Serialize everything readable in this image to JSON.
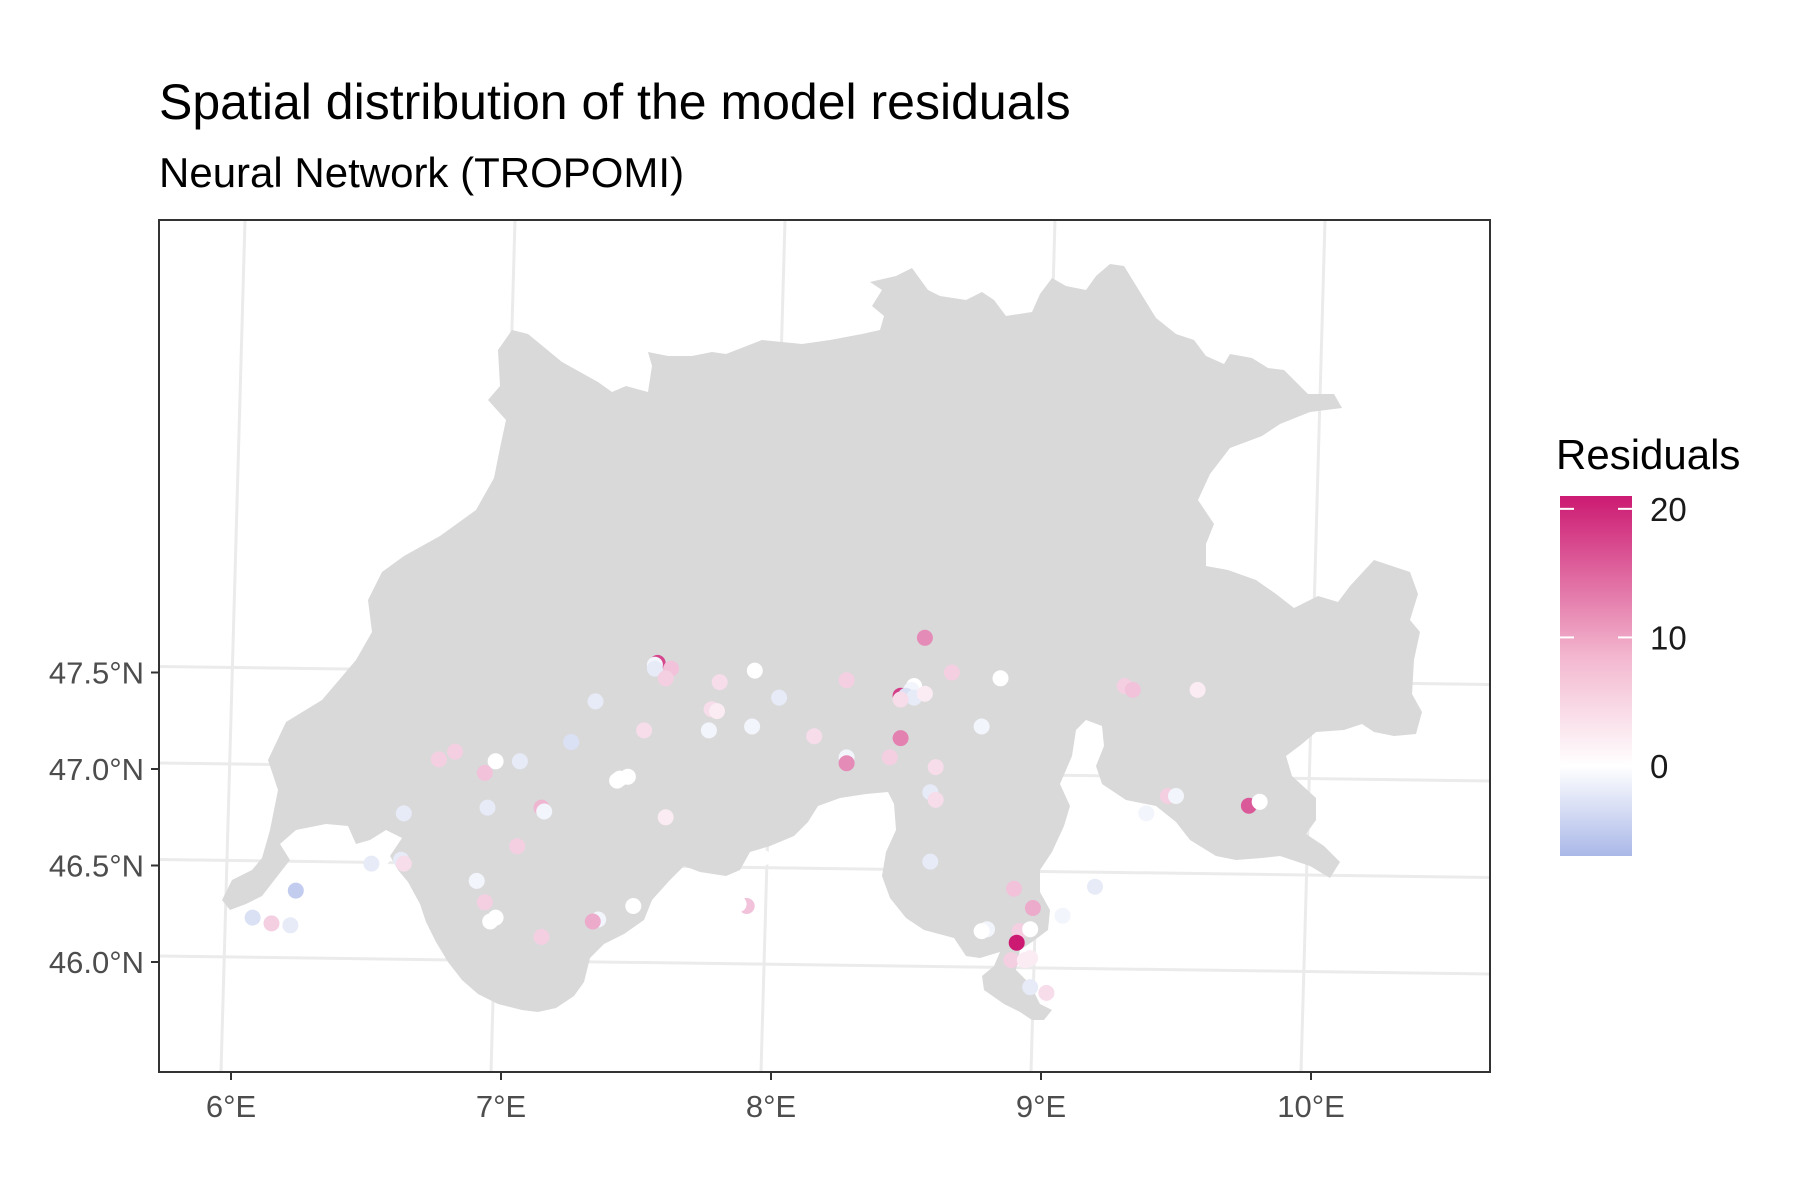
{
  "chart_data": {
    "type": "scatter",
    "title": "Spatial distribution of the model residuals",
    "subtitle": "Neural Network (TROPOMI)",
    "x_ticks": [
      {
        "value": 6,
        "label": "6°E"
      },
      {
        "value": 7,
        "label": "7°E"
      },
      {
        "value": 8,
        "label": "8°E"
      },
      {
        "value": 9,
        "label": "9°E"
      },
      {
        "value": 10,
        "label": "10°E"
      }
    ],
    "y_ticks": [
      {
        "value": 46.0,
        "label": "46.0°N"
      },
      {
        "value": 46.5,
        "label": "46.5°N"
      },
      {
        "value": 47.0,
        "label": "47.0°N"
      },
      {
        "value": 47.5,
        "label": "47.5°N"
      }
    ],
    "xlim": [
      5.74,
      10.66
    ],
    "ylim": [
      45.71,
      47.91
    ],
    "grid": true,
    "basemap": "Switzerland outline (grey)",
    "legend": {
      "title": "Residuals",
      "position": "right",
      "scale": {
        "min": -7,
        "mid": 0,
        "max": 21,
        "low_color": "#aab8e8",
        "mid_color": "#ffffff",
        "high_color": "#cc1a72"
      },
      "breaks": [
        {
          "value": 20,
          "label": "20"
        },
        {
          "value": 10,
          "label": "10"
        },
        {
          "value": 0,
          "label": "0"
        }
      ]
    },
    "colors": {
      "background": "#ffffff",
      "map_fill": "#d9d9d9",
      "grid": "#ebebeb",
      "panel_border": "#333333"
    },
    "points": [
      {
        "lon": 7.58,
        "lat": 47.55,
        "residual": 16
      },
      {
        "lon": 7.57,
        "lat": 47.54,
        "residual": -1
      },
      {
        "lon": 7.57,
        "lat": 47.52,
        "residual": -2
      },
      {
        "lon": 7.63,
        "lat": 47.52,
        "residual": 4
      },
      {
        "lon": 7.61,
        "lat": 47.47,
        "residual": 3
      },
      {
        "lon": 7.94,
        "lat": 47.51,
        "residual": 0
      },
      {
        "lon": 7.81,
        "lat": 47.45,
        "residual": 2
      },
      {
        "lon": 8.28,
        "lat": 47.46,
        "residual": 3
      },
      {
        "lon": 8.57,
        "lat": 47.68,
        "residual": 9
      },
      {
        "lon": 8.67,
        "lat": 47.5,
        "residual": 3
      },
      {
        "lon": 8.85,
        "lat": 47.47,
        "residual": 0
      },
      {
        "lon": 8.53,
        "lat": 47.43,
        "residual": 0
      },
      {
        "lon": 8.52,
        "lat": 47.41,
        "residual": -1
      },
      {
        "lon": 8.48,
        "lat": 47.38,
        "residual": 17
      },
      {
        "lon": 8.5,
        "lat": 47.38,
        "residual": -3
      },
      {
        "lon": 8.53,
        "lat": 47.37,
        "residual": -2
      },
      {
        "lon": 8.57,
        "lat": 47.39,
        "residual": 1
      },
      {
        "lon": 8.48,
        "lat": 47.36,
        "residual": 2
      },
      {
        "lon": 9.31,
        "lat": 47.43,
        "residual": 3
      },
      {
        "lon": 9.34,
        "lat": 47.41,
        "residual": 4
      },
      {
        "lon": 9.58,
        "lat": 47.41,
        "residual": 1
      },
      {
        "lon": 7.35,
        "lat": 47.35,
        "residual": -2
      },
      {
        "lon": 8.03,
        "lat": 47.37,
        "residual": -2
      },
      {
        "lon": 7.78,
        "lat": 47.31,
        "residual": 2
      },
      {
        "lon": 7.8,
        "lat": 47.3,
        "residual": 1
      },
      {
        "lon": 7.93,
        "lat": 47.22,
        "residual": -1
      },
      {
        "lon": 7.77,
        "lat": 47.2,
        "residual": -1
      },
      {
        "lon": 7.53,
        "lat": 47.2,
        "residual": 2
      },
      {
        "lon": 8.16,
        "lat": 47.17,
        "residual": 2
      },
      {
        "lon": 8.48,
        "lat": 47.16,
        "residual": 10
      },
      {
        "lon": 8.78,
        "lat": 47.22,
        "residual": -1
      },
      {
        "lon": 7.26,
        "lat": 47.14,
        "residual": -3
      },
      {
        "lon": 6.83,
        "lat": 47.09,
        "residual": 3
      },
      {
        "lon": 6.77,
        "lat": 47.05,
        "residual": 3
      },
      {
        "lon": 6.98,
        "lat": 47.04,
        "residual": 0
      },
      {
        "lon": 7.07,
        "lat": 47.04,
        "residual": -2
      },
      {
        "lon": 8.28,
        "lat": 47.06,
        "residual": -1
      },
      {
        "lon": 8.28,
        "lat": 47.03,
        "residual": 9
      },
      {
        "lon": 8.44,
        "lat": 47.06,
        "residual": 3
      },
      {
        "lon": 8.61,
        "lat": 47.01,
        "residual": 2
      },
      {
        "lon": 6.94,
        "lat": 46.98,
        "residual": 4
      },
      {
        "lon": 7.44,
        "lat": 46.95,
        "residual": 0
      },
      {
        "lon": 7.47,
        "lat": 46.96,
        "residual": 0
      },
      {
        "lon": 7.43,
        "lat": 46.94,
        "residual": 0
      },
      {
        "lon": 8.59,
        "lat": 46.88,
        "residual": -2
      },
      {
        "lon": 9.47,
        "lat": 46.86,
        "residual": 3
      },
      {
        "lon": 9.5,
        "lat": 46.86,
        "residual": -1
      },
      {
        "lon": 9.77,
        "lat": 46.81,
        "residual": 14
      },
      {
        "lon": 9.81,
        "lat": 46.83,
        "residual": 0
      },
      {
        "lon": 8.61,
        "lat": 46.84,
        "residual": 2
      },
      {
        "lon": 6.95,
        "lat": 46.8,
        "residual": -2
      },
      {
        "lon": 7.15,
        "lat": 46.8,
        "residual": 5
      },
      {
        "lon": 7.16,
        "lat": 46.78,
        "residual": -1
      },
      {
        "lon": 6.64,
        "lat": 46.77,
        "residual": -2
      },
      {
        "lon": 7.61,
        "lat": 46.75,
        "residual": 1
      },
      {
        "lon": 9.39,
        "lat": 46.77,
        "residual": -1
      },
      {
        "lon": 7.06,
        "lat": 46.6,
        "residual": 3
      },
      {
        "lon": 6.56,
        "lat": 46.54,
        "residual": 0
      },
      {
        "lon": 6.63,
        "lat": 46.53,
        "residual": -2
      },
      {
        "lon": 6.64,
        "lat": 46.51,
        "residual": 2
      },
      {
        "lon": 6.52,
        "lat": 46.51,
        "residual": -2
      },
      {
        "lon": 7.97,
        "lat": 46.54,
        "residual": 0
      },
      {
        "lon": 8.59,
        "lat": 46.52,
        "residual": -2
      },
      {
        "lon": 6.91,
        "lat": 46.42,
        "residual": -1
      },
      {
        "lon": 6.24,
        "lat": 46.37,
        "residual": -5
      },
      {
        "lon": 8.9,
        "lat": 46.38,
        "residual": 4
      },
      {
        "lon": 9.2,
        "lat": 46.39,
        "residual": -2
      },
      {
        "lon": 6.94,
        "lat": 46.31,
        "residual": 3
      },
      {
        "lon": 7.49,
        "lat": 46.29,
        "residual": 0
      },
      {
        "lon": 7.91,
        "lat": 46.29,
        "residual": 4
      },
      {
        "lon": 7.88,
        "lat": 46.3,
        "residual": 0
      },
      {
        "lon": 8.97,
        "lat": 46.28,
        "residual": 6
      },
      {
        "lon": 9.08,
        "lat": 46.24,
        "residual": -1
      },
      {
        "lon": 6.08,
        "lat": 46.23,
        "residual": -3
      },
      {
        "lon": 6.98,
        "lat": 46.23,
        "residual": 0
      },
      {
        "lon": 6.96,
        "lat": 46.21,
        "residual": 0
      },
      {
        "lon": 7.36,
        "lat": 46.22,
        "residual": -1
      },
      {
        "lon": 7.34,
        "lat": 46.21,
        "residual": 6
      },
      {
        "lon": 6.15,
        "lat": 46.2,
        "residual": 3
      },
      {
        "lon": 6.22,
        "lat": 46.19,
        "residual": -2
      },
      {
        "lon": 8.8,
        "lat": 46.17,
        "residual": -1
      },
      {
        "lon": 8.78,
        "lat": 46.16,
        "residual": 0
      },
      {
        "lon": 8.92,
        "lat": 46.16,
        "residual": 3
      },
      {
        "lon": 8.96,
        "lat": 46.17,
        "residual": 0
      },
      {
        "lon": 7.15,
        "lat": 46.13,
        "residual": 3
      },
      {
        "lon": 8.91,
        "lat": 46.1,
        "residual": 21
      },
      {
        "lon": 8.89,
        "lat": 46.01,
        "residual": 3
      },
      {
        "lon": 8.94,
        "lat": 46.01,
        "residual": 1
      },
      {
        "lon": 8.96,
        "lat": 46.02,
        "residual": 1
      },
      {
        "lon": 8.96,
        "lat": 45.87,
        "residual": -2
      },
      {
        "lon": 9.02,
        "lat": 45.84,
        "residual": 2
      }
    ]
  }
}
